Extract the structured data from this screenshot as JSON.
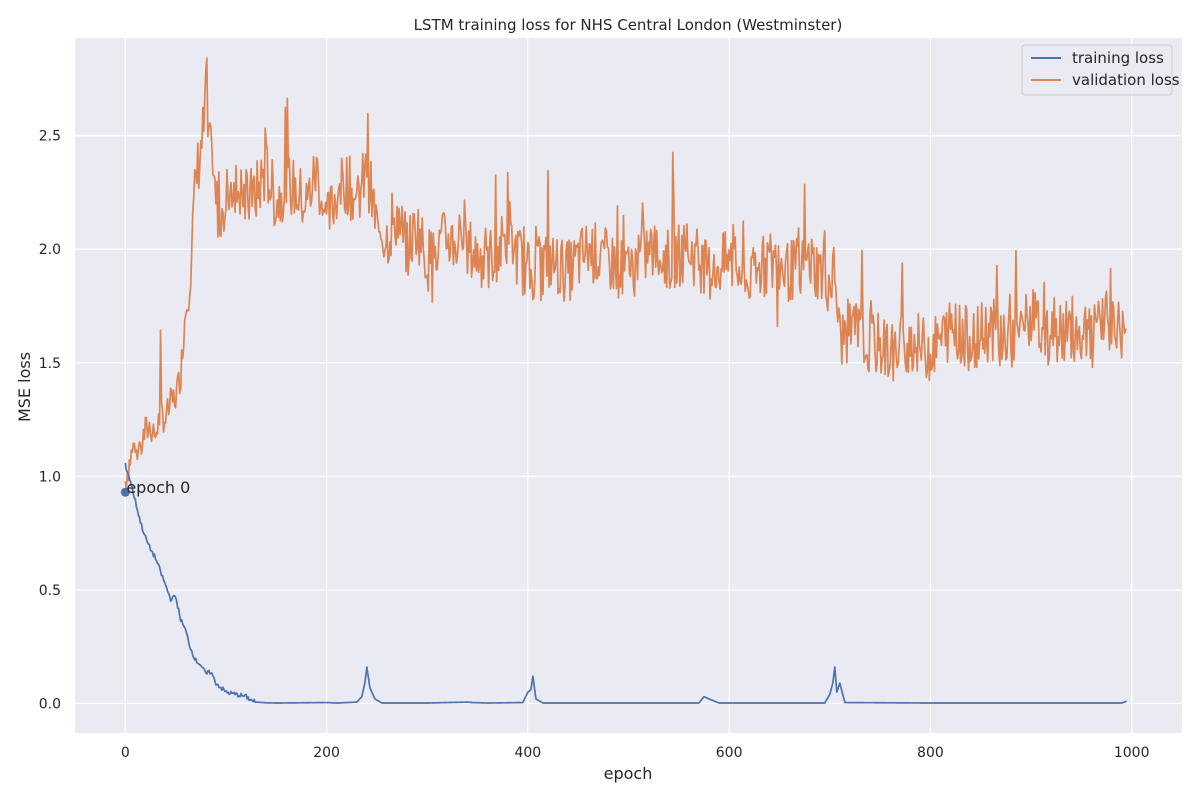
{
  "chart_data": {
    "type": "line",
    "title": "LSTM training loss for NHS Central London (Westminster)",
    "xlabel": "epoch",
    "ylabel": "MSE loss",
    "xlim": [
      -50,
      1050
    ],
    "ylim": [
      -0.13,
      2.93
    ],
    "x_ticks": [
      0,
      200,
      400,
      600,
      800,
      1000
    ],
    "y_ticks": [
      0.0,
      0.5,
      1.0,
      1.5,
      2.0,
      2.5
    ],
    "x_tick_labels": [
      "0",
      "200",
      "400",
      "600",
      "800",
      "1000"
    ],
    "y_tick_labels": [
      "0.0",
      "0.5",
      "1.0",
      "1.5",
      "2.0",
      "2.5"
    ],
    "grid": true,
    "legend_position": "top-right",
    "colors": {
      "background": "#eaeaf2",
      "grid": "#ffffff",
      "training": "#4c72b0",
      "validation": "#dd8452"
    },
    "annotation": {
      "x": 0,
      "y": 0.93,
      "text": "epoch 0"
    },
    "series": [
      {
        "name": "training loss",
        "x": [
          0,
          5,
          10,
          15,
          20,
          25,
          30,
          35,
          40,
          45,
          50,
          55,
          60,
          65,
          70,
          75,
          80,
          85,
          90,
          95,
          100,
          105,
          110,
          115,
          120,
          125,
          130,
          140,
          150,
          200,
          210,
          230,
          235,
          238,
          240,
          243,
          248,
          255,
          300,
          340,
          345,
          360,
          395,
          400,
          403,
          405,
          408,
          415,
          500,
          570,
          575,
          580,
          590,
          600,
          695,
          700,
          703,
          705,
          707,
          710,
          715,
          800,
          900,
          990,
          995
        ],
        "values": [
          1.05,
          0.98,
          0.89,
          0.8,
          0.73,
          0.68,
          0.64,
          0.58,
          0.52,
          0.46,
          0.47,
          0.37,
          0.32,
          0.24,
          0.19,
          0.17,
          0.13,
          0.14,
          0.09,
          0.07,
          0.05,
          0.045,
          0.04,
          0.035,
          0.03,
          0.015,
          0.006,
          0.003,
          0.002,
          0.004,
          0.002,
          0.006,
          0.03,
          0.09,
          0.16,
          0.07,
          0.02,
          0.002,
          0.002,
          0.006,
          0.004,
          0.002,
          0.004,
          0.05,
          0.06,
          0.12,
          0.02,
          0.002,
          0.002,
          0.002,
          0.03,
          0.02,
          0.002,
          0.002,
          0.002,
          0.04,
          0.09,
          0.16,
          0.05,
          0.09,
          0.004,
          0.002,
          0.002,
          0.002,
          0.01
        ]
      },
      {
        "name": "validation loss",
        "x": [
          0,
          5,
          10,
          15,
          20,
          25,
          30,
          35,
          40,
          45,
          50,
          55,
          60,
          65,
          70,
          75,
          80,
          85,
          90,
          95,
          100,
          110,
          120,
          130,
          140,
          150,
          160,
          170,
          180,
          190,
          200,
          210,
          220,
          230,
          240,
          250,
          260,
          270,
          280,
          290,
          300,
          320,
          340,
          360,
          380,
          400,
          420,
          440,
          460,
          480,
          500,
          520,
          540,
          560,
          580,
          600,
          620,
          640,
          660,
          680,
          700,
          705,
          710,
          720,
          740,
          760,
          780,
          800,
          820,
          840,
          860,
          880,
          900,
          920,
          940,
          960,
          980,
          995
        ],
        "values": [
          0.98,
          1.08,
          1.15,
          1.12,
          1.2,
          1.22,
          1.18,
          1.28,
          1.25,
          1.32,
          1.35,
          1.45,
          1.75,
          1.95,
          2.3,
          2.45,
          2.6,
          2.4,
          2.2,
          2.15,
          2.25,
          2.3,
          2.2,
          2.25,
          2.35,
          2.2,
          2.3,
          2.25,
          2.2,
          2.35,
          2.1,
          2.25,
          2.3,
          2.2,
          2.35,
          2.1,
          2.05,
          2.15,
          2.0,
          2.1,
          1.95,
          2.05,
          2.0,
          1.95,
          2.05,
          1.9,
          1.95,
          1.9,
          2.0,
          1.95,
          1.9,
          2.0,
          1.95,
          2.0,
          1.9,
          1.95,
          1.85,
          1.95,
          1.9,
          1.95,
          1.85,
          1.9,
          1.6,
          1.65,
          1.6,
          1.55,
          1.6,
          1.55,
          1.65,
          1.6,
          1.65,
          1.6,
          1.7,
          1.6,
          1.65,
          1.6,
          1.7,
          1.6
        ]
      }
    ]
  }
}
